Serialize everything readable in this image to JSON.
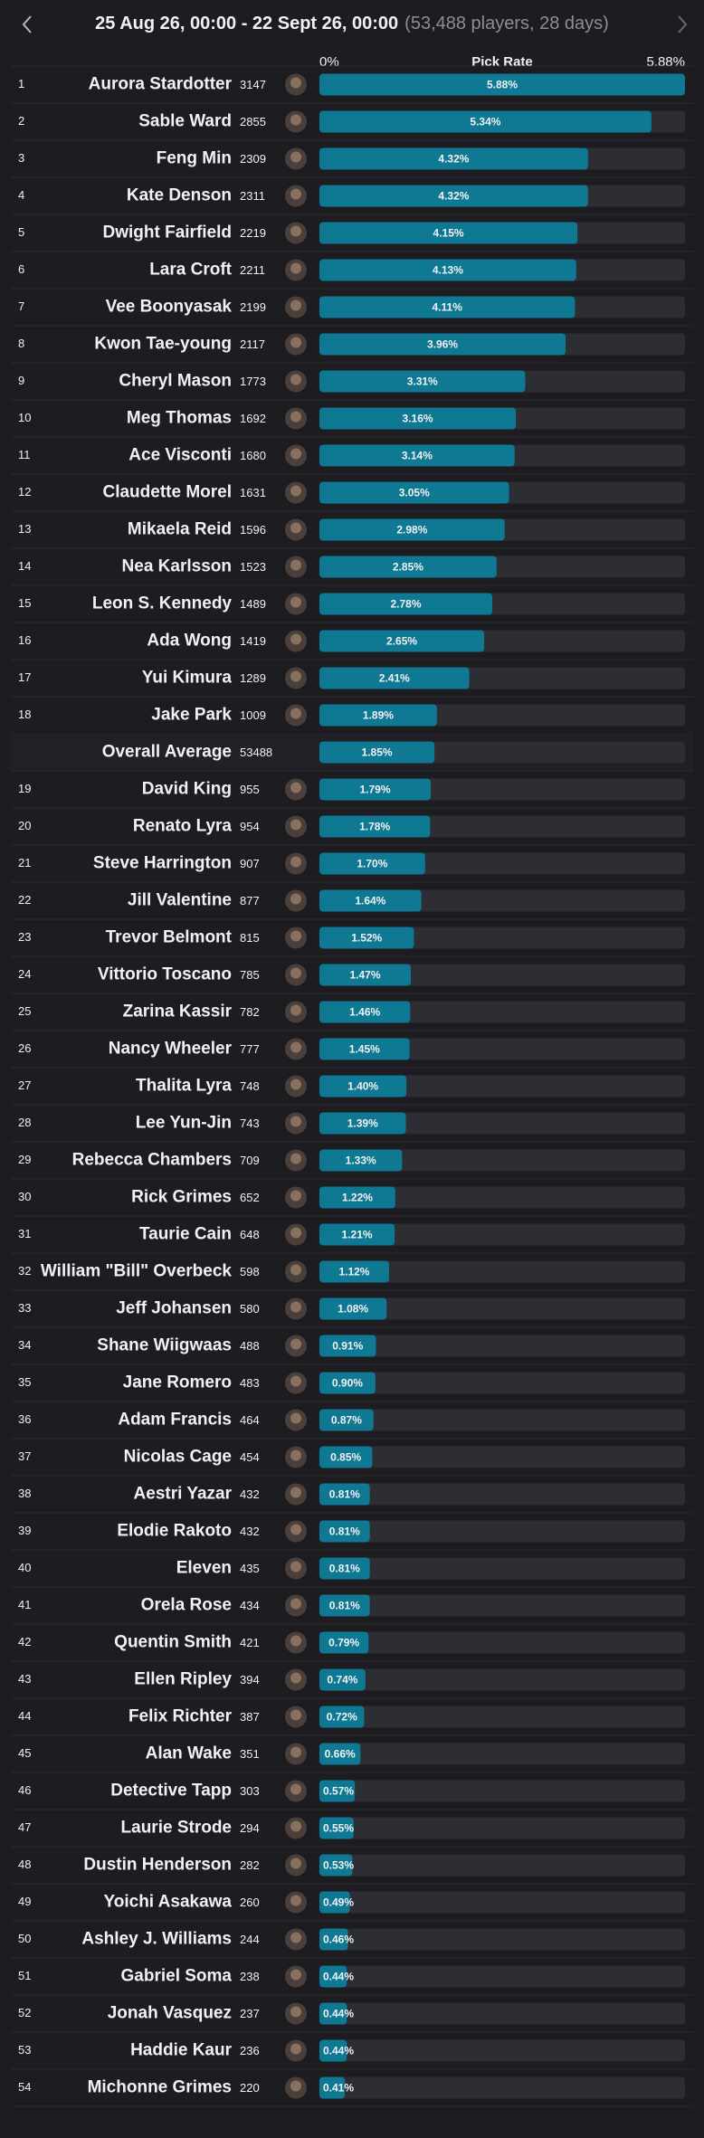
{
  "chart_data": {
    "type": "bar",
    "title": "25 Aug 26, 00:00 - 22 Sept 26, 00:00",
    "subtitle": "(53,488 players, 28 days)",
    "x_label": "Pick Rate",
    "xlim": [
      0,
      5.88
    ],
    "xticks": [
      {
        "value": 0,
        "label": "0%"
      },
      {
        "value": 5.88,
        "label": "5.88%"
      }
    ],
    "color": "#0f7893",
    "ranks": [
      1,
      2,
      3,
      4,
      5,
      6,
      7,
      8,
      9,
      10,
      11,
      12,
      13,
      14,
      15,
      16,
      17,
      18,
      null,
      19,
      20,
      21,
      22,
      23,
      24,
      25,
      26,
      27,
      28,
      29,
      30,
      31,
      32,
      33,
      34,
      35,
      36,
      37,
      38,
      39,
      40,
      41,
      42,
      43,
      44,
      45,
      46,
      47,
      48,
      49,
      50,
      51,
      52,
      53,
      54
    ],
    "categories": [
      "Aurora Stardotter",
      "Sable Ward",
      "Feng Min",
      "Kate Denson",
      "Dwight Fairfield",
      "Lara Croft",
      "Vee Boonyasak",
      "Kwon Tae-young",
      "Cheryl Mason",
      "Meg Thomas",
      "Ace Visconti",
      "Claudette Morel",
      "Mikaela Reid",
      "Nea Karlsson",
      "Leon S. Kennedy",
      "Ada Wong",
      "Yui Kimura",
      "Jake Park",
      "Overall Average",
      "David King",
      "Renato Lyra",
      "Steve Harrington",
      "Jill Valentine",
      "Trevor Belmont",
      "Vittorio Toscano",
      "Zarina Kassir",
      "Nancy Wheeler",
      "Thalita Lyra",
      "Lee Yun-Jin",
      "Rebecca Chambers",
      "Rick Grimes",
      "Taurie Cain",
      "William \"Bill\" Overbeck",
      "Jeff Johansen",
      "Shane Wiigwaas",
      "Jane Romero",
      "Adam Francis",
      "Nicolas Cage",
      "Aestri Yazar",
      "Elodie Rakoto",
      "Eleven",
      "Orela Rose",
      "Quentin Smith",
      "Ellen Ripley",
      "Felix Richter",
      "Alan Wake",
      "Detective Tapp",
      "Laurie Strode",
      "Dustin Henderson",
      "Yoichi Asakawa",
      "Ashley J. Williams",
      "Gabriel Soma",
      "Jonah Vasquez",
      "Haddie Kaur",
      "Michonne Grimes"
    ],
    "counts": [
      3147,
      2855,
      2309,
      2311,
      2219,
      2211,
      2199,
      2117,
      1773,
      1692,
      1680,
      1631,
      1596,
      1523,
      1489,
      1419,
      1289,
      1009,
      53488,
      955,
      954,
      907,
      877,
      815,
      785,
      782,
      777,
      748,
      743,
      709,
      652,
      648,
      598,
      580,
      488,
      483,
      464,
      454,
      432,
      432,
      435,
      434,
      421,
      394,
      387,
      351,
      303,
      294,
      282,
      260,
      244,
      238,
      237,
      236,
      220
    ],
    "values": [
      5.88,
      5.34,
      4.32,
      4.32,
      4.15,
      4.13,
      4.11,
      3.96,
      3.31,
      3.16,
      3.14,
      3.05,
      2.98,
      2.85,
      2.78,
      2.65,
      2.41,
      1.89,
      1.85,
      1.79,
      1.78,
      1.7,
      1.64,
      1.52,
      1.47,
      1.46,
      1.45,
      1.4,
      1.39,
      1.33,
      1.22,
      1.21,
      1.12,
      1.08,
      0.91,
      0.9,
      0.87,
      0.85,
      0.81,
      0.81,
      0.81,
      0.81,
      0.79,
      0.74,
      0.72,
      0.66,
      0.57,
      0.55,
      0.53,
      0.49,
      0.46,
      0.44,
      0.44,
      0.44,
      0.41
    ],
    "value_labels": [
      "5.88%",
      "5.34%",
      "4.32%",
      "4.32%",
      "4.15%",
      "4.13%",
      "4.11%",
      "3.96%",
      "3.31%",
      "3.16%",
      "3.14%",
      "3.05%",
      "2.98%",
      "2.85%",
      "2.78%",
      "2.65%",
      "2.41%",
      "1.89%",
      "1.85%",
      "1.79%",
      "1.78%",
      "1.70%",
      "1.64%",
      "1.52%",
      "1.47%",
      "1.46%",
      "1.45%",
      "1.40%",
      "1.39%",
      "1.33%",
      "1.22%",
      "1.21%",
      "1.12%",
      "1.08%",
      "0.91%",
      "0.90%",
      "0.87%",
      "0.85%",
      "0.81%",
      "0.81%",
      "0.81%",
      "0.81%",
      "0.79%",
      "0.74%",
      "0.72%",
      "0.66%",
      "0.57%",
      "0.55%",
      "0.53%",
      "0.49%",
      "0.46%",
      "0.44%",
      "0.44%",
      "0.44%",
      "0.41%"
    ]
  }
}
